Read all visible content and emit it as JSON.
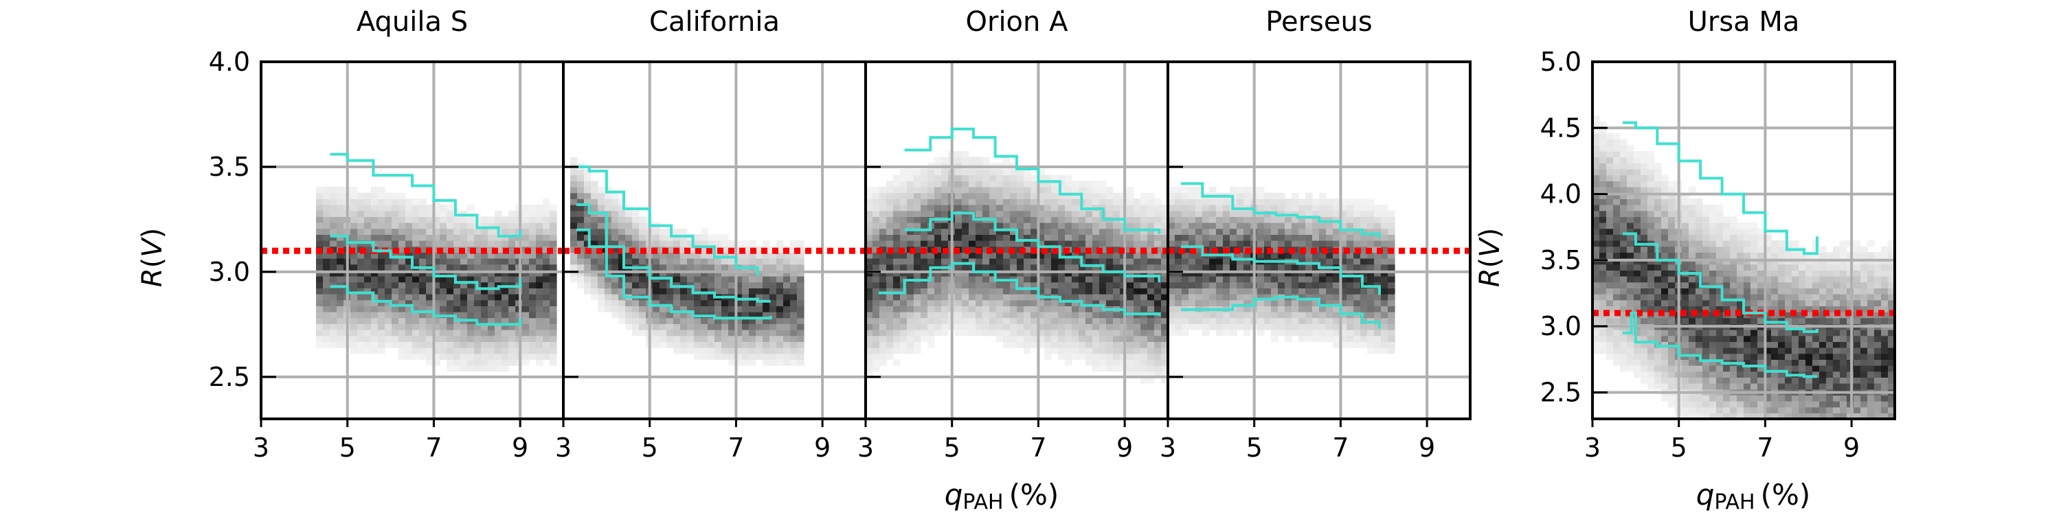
{
  "figure": {
    "xlabel_main": "q",
    "xlabel_sub": "PAH",
    "xlabel_unit": "(%)",
    "ylabel_italic": "R",
    "ylabel_open": "(",
    "ylabel_var": "V",
    "ylabel_close": ")"
  },
  "chart_data": [
    {
      "type": "heatmap",
      "title": "Aquila S",
      "xlim": [
        3,
        10
      ],
      "ylim": [
        2.3,
        4.0
      ],
      "xticks": [
        3,
        5,
        7,
        9
      ],
      "yticks": [
        2.5,
        3.0,
        3.5,
        4.0
      ],
      "ytick_labels": [
        "2.5",
        "3.0",
        "3.5",
        "4.0"
      ],
      "grid": true,
      "reference_line": {
        "y": 3.1,
        "color": "#ff0000",
        "style": "dotted"
      },
      "density": {
        "x_range": [
          4.3,
          9.9
        ],
        "y_center": [
          [
            3,
            3.05
          ],
          [
            6,
            3.0
          ],
          [
            8,
            2.9
          ],
          [
            10,
            2.95
          ]
        ],
        "spread": 0.22
      },
      "series": [
        {
          "color": "#40e0d0",
          "x": [
            4.6,
            5.0,
            5.6,
            6.0,
            6.5,
            7.0,
            7.5,
            8.0,
            8.5,
            9.0
          ],
          "y": [
            3.56,
            3.53,
            3.46,
            3.46,
            3.41,
            3.34,
            3.27,
            3.21,
            3.17,
            3.2
          ]
        },
        {
          "color": "#40e0d0",
          "x": [
            4.6,
            5.0,
            5.6,
            6.0,
            6.5,
            7.0,
            7.5,
            8.0,
            8.5,
            9.0
          ],
          "y": [
            3.17,
            3.14,
            3.1,
            3.07,
            3.02,
            2.98,
            2.95,
            2.92,
            2.93,
            2.97
          ]
        },
        {
          "color": "#40e0d0",
          "x": [
            4.6,
            5.0,
            5.6,
            6.0,
            6.5,
            7.0,
            7.5,
            8.0,
            8.5,
            9.0
          ],
          "y": [
            2.93,
            2.9,
            2.86,
            2.84,
            2.81,
            2.79,
            2.77,
            2.75,
            2.75,
            2.78
          ]
        }
      ]
    },
    {
      "type": "heatmap",
      "title": "California",
      "xlim": [
        3,
        10
      ],
      "ylim": [
        2.3,
        4.0
      ],
      "xticks": [
        3,
        5,
        7,
        9
      ],
      "yticks": [
        2.5,
        3.0,
        3.5,
        4.0
      ],
      "grid": true,
      "reference_line": {
        "y": 3.1,
        "color": "#ff0000",
        "style": "dotted"
      },
      "density": {
        "x_range": [
          3.2,
          8.6
        ],
        "y_center": [
          [
            3,
            3.3
          ],
          [
            4,
            3.1
          ],
          [
            5,
            2.95
          ],
          [
            7,
            2.85
          ],
          [
            9,
            2.85
          ]
        ],
        "spread": 0.17
      },
      "series": [
        {
          "color": "#40e0d0",
          "x": [
            3.3,
            3.6,
            4.0,
            4.4,
            5.0,
            5.5,
            6.0,
            6.5,
            7.0,
            7.5
          ],
          "y": [
            3.5,
            3.48,
            3.38,
            3.3,
            3.22,
            3.17,
            3.12,
            3.07,
            3.02,
            2.98
          ]
        },
        {
          "color": "#40e0d0",
          "x": [
            3.3,
            3.6,
            4.0,
            4.4,
            5.0,
            5.5,
            6.0,
            6.5,
            7.0,
            7.5,
            7.8
          ],
          "y": [
            3.32,
            3.28,
            3.12,
            3.02,
            2.97,
            2.93,
            2.9,
            2.88,
            2.87,
            2.86,
            2.86
          ]
        },
        {
          "color": "#40e0d0",
          "x": [
            3.3,
            3.6,
            4.0,
            4.4,
            5.0,
            5.5,
            6.0,
            6.5,
            7.0,
            7.5,
            7.8
          ],
          "y": [
            3.2,
            3.12,
            2.98,
            2.88,
            2.84,
            2.81,
            2.79,
            2.78,
            2.78,
            2.78,
            2.79
          ]
        }
      ]
    },
    {
      "type": "heatmap",
      "title": "Orion A",
      "xlim": [
        3,
        10
      ],
      "ylim": [
        2.3,
        4.0
      ],
      "xticks": [
        3,
        5,
        7,
        9
      ],
      "yticks": [
        2.5,
        3.0,
        3.5,
        4.0
      ],
      "grid": true,
      "reference_line": {
        "y": 3.1,
        "color": "#ff0000",
        "style": "dotted"
      },
      "density": {
        "x_range": [
          3.0,
          10.0
        ],
        "y_center": [
          [
            3,
            2.95
          ],
          [
            5,
            3.15
          ],
          [
            7,
            3.05
          ],
          [
            9,
            2.95
          ],
          [
            10,
            2.9
          ]
        ],
        "spread": 0.25
      },
      "series": [
        {
          "color": "#40e0d0",
          "x": [
            3.9,
            4.5,
            5.0,
            5.5,
            6.0,
            6.5,
            7.0,
            7.5,
            8.0,
            8.5,
            9.0,
            9.8
          ],
          "y": [
            3.58,
            3.64,
            3.68,
            3.64,
            3.55,
            3.49,
            3.43,
            3.37,
            3.3,
            3.25,
            3.2,
            3.18
          ]
        },
        {
          "color": "#40e0d0",
          "x": [
            3.9,
            4.5,
            5.0,
            5.5,
            6.0,
            6.5,
            7.0,
            7.5,
            8.0,
            8.5,
            9.0,
            9.8
          ],
          "y": [
            3.2,
            3.25,
            3.28,
            3.25,
            3.2,
            3.15,
            3.12,
            3.07,
            3.03,
            3.0,
            2.98,
            2.95
          ]
        },
        {
          "color": "#40e0d0",
          "x": [
            3.3,
            3.9,
            4.5,
            5.0,
            5.5,
            6.0,
            6.5,
            7.0,
            7.5,
            8.0,
            8.5,
            9.0,
            9.8
          ],
          "y": [
            2.9,
            2.96,
            3.02,
            3.04,
            3.0,
            2.96,
            2.92,
            2.88,
            2.86,
            2.84,
            2.82,
            2.8,
            2.79
          ]
        }
      ]
    },
    {
      "type": "heatmap",
      "title": "Perseus",
      "xlim": [
        3,
        10
      ],
      "ylim": [
        2.3,
        4.0
      ],
      "xticks": [
        3,
        5,
        7,
        9
      ],
      "yticks": [
        2.5,
        3.0,
        3.5,
        4.0
      ],
      "grid": true,
      "reference_line": {
        "y": 3.1,
        "color": "#ff0000",
        "style": "dotted"
      },
      "density": {
        "x_range": [
          3.0,
          8.2
        ],
        "y_center": [
          [
            3,
            3.05
          ],
          [
            5,
            3.05
          ],
          [
            7,
            3.0
          ],
          [
            8.2,
            2.95
          ]
        ],
        "spread": 0.2
      },
      "series": [
        {
          "color": "#40e0d0",
          "x": [
            3.3,
            3.8,
            4.5,
            5.0,
            5.5,
            6.0,
            6.5,
            7.0,
            7.5,
            7.9
          ],
          "y": [
            3.42,
            3.36,
            3.3,
            3.28,
            3.27,
            3.26,
            3.24,
            3.2,
            3.18,
            3.16
          ]
        },
        {
          "color": "#40e0d0",
          "x": [
            3.3,
            3.8,
            4.5,
            5.0,
            5.5,
            6.0,
            6.5,
            7.0,
            7.5,
            7.9
          ],
          "y": [
            3.12,
            3.08,
            3.06,
            3.05,
            3.05,
            3.04,
            3.02,
            2.98,
            2.93,
            2.89
          ]
        },
        {
          "color": "#40e0d0",
          "x": [
            3.3,
            3.8,
            4.5,
            5.0,
            5.5,
            6.0,
            6.5,
            7.0,
            7.5,
            7.9
          ],
          "y": [
            2.82,
            2.82,
            2.84,
            2.87,
            2.88,
            2.87,
            2.84,
            2.8,
            2.76,
            2.73
          ]
        }
      ]
    },
    {
      "type": "heatmap",
      "title": "Ursa Ma",
      "xlim": [
        3,
        10
      ],
      "ylim": [
        2.3,
        5.0
      ],
      "xticks": [
        3,
        5,
        7,
        9
      ],
      "yticks": [
        2.5,
        3.0,
        3.5,
        4.0,
        4.5,
        5.0
      ],
      "grid": true,
      "reference_line": {
        "y": 3.1,
        "color": "#ff0000",
        "style": "dotted"
      },
      "density": {
        "x_range": [
          3.0,
          10.0
        ],
        "y_center": [
          [
            3,
            3.7
          ],
          [
            4,
            3.5
          ],
          [
            5,
            3.2
          ],
          [
            6,
            3.0
          ],
          [
            7,
            2.85
          ],
          [
            8,
            2.75
          ],
          [
            10,
            2.75
          ]
        ],
        "spread": 0.5
      },
      "series": [
        {
          "color": "#40e0d0",
          "x": [
            3.7,
            4.0,
            4.5,
            5.0,
            5.5,
            6.0,
            6.5,
            7.0,
            7.5,
            7.9,
            8.2
          ],
          "y": [
            4.54,
            4.5,
            4.38,
            4.25,
            4.12,
            4.0,
            3.86,
            3.72,
            3.58,
            3.55,
            3.68
          ]
        },
        {
          "color": "#40e0d0",
          "x": [
            3.7,
            4.0,
            4.5,
            5.0,
            5.5,
            6.0,
            6.5,
            7.0,
            7.5,
            7.9,
            8.2
          ],
          "y": [
            3.7,
            3.62,
            3.5,
            3.4,
            3.3,
            3.2,
            3.1,
            3.03,
            2.98,
            2.96,
            2.98
          ]
        },
        {
          "color": "#40e0d0",
          "x": [
            3.7,
            3.9,
            4.0,
            4.5,
            5.0,
            5.5,
            6.0,
            6.5,
            7.0,
            7.5,
            7.9,
            8.2
          ],
          "y": [
            2.95,
            3.1,
            2.88,
            2.85,
            2.78,
            2.74,
            2.72,
            2.7,
            2.66,
            2.63,
            2.62,
            2.62
          ]
        }
      ]
    }
  ]
}
